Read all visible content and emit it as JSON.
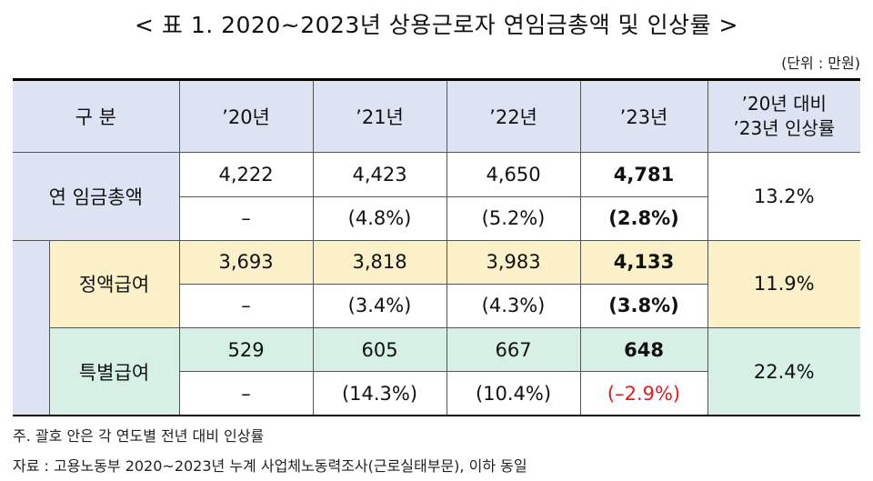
{
  "title": "< 표 1. 2020~2023년 상용근로자 연임금총액 및 인상률 >",
  "unit": "(단위 : 만원)",
  "header": {
    "category": "구 분",
    "y20": "’20년",
    "y21": "’21년",
    "y22": "’22년",
    "y23": "’23년",
    "rate_line1": "’20년 대비",
    "rate_line2": "’23년 인상률"
  },
  "rows": {
    "total": {
      "label": "연 임금총액",
      "values": [
        "4,222",
        "4,423",
        "4,650",
        "4,781"
      ],
      "changes": [
        "–",
        "(4.8%)",
        "(5.2%)",
        "(2.8%)"
      ],
      "rate": "13.2%"
    },
    "fixed": {
      "label": "정액급여",
      "values": [
        "3,693",
        "3,818",
        "3,983",
        "4,133"
      ],
      "changes": [
        "–",
        "(3.4%)",
        "(4.3%)",
        "(3.8%)"
      ],
      "rate": "11.9%"
    },
    "special": {
      "label": "특별급여",
      "values": [
        "529",
        "605",
        "667",
        "648"
      ],
      "changes": [
        "–",
        "(14.3%)",
        "(10.4%)",
        "(–2.9%)"
      ],
      "rate": "22.4%"
    }
  },
  "notes": {
    "note1": "주. 괄호 안은 각 연도별 전년 대비 인상률",
    "source": "자료 : 고용노동부 2020~2023년 누계 사업체노동력조사(근로실태부문), 이하 동일"
  },
  "colors": {
    "header_bg": "#dde3f2",
    "fixed_bg": "#fbf0c8",
    "special_bg": "#d6f0e6",
    "negative": "#e01b1b"
  }
}
